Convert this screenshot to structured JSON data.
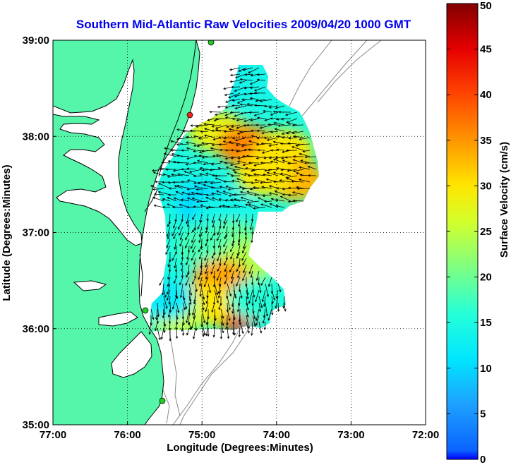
{
  "title": "Southern Mid-Atlantic Raw Velocities 2009/04/20 1000 GMT",
  "x_axis": {
    "label": "Longitude (Degrees:Minutes)",
    "ticks": [
      "77:00",
      "76:00",
      "75:00",
      "74:00",
      "73:00",
      "72:00"
    ]
  },
  "y_axis": {
    "label": "Latitude (Degrees:Minutes)",
    "ticks": [
      "39:00",
      "38:00",
      "37:00",
      "36:00",
      "35:00"
    ]
  },
  "colorbar": {
    "label": "Surface Velocity (cm/s)",
    "ticks": [
      "50",
      "45",
      "40",
      "35",
      "30",
      "25",
      "20",
      "15",
      "10",
      "5",
      "0"
    ],
    "min": 0,
    "max": 50,
    "colormap": "jet"
  },
  "colors": {
    "land": "#55f5aa",
    "coastline": "#000000",
    "bathymetry": "#8a8a8a",
    "grid": "#000000",
    "site_marker_green": "#22cc22",
    "site_marker_red": "#ee2222"
  },
  "map": {
    "lon_range": [
      -77,
      -72
    ],
    "lat_range": [
      35,
      39
    ],
    "grid": "dotted"
  },
  "chart_data": {
    "type": "heatmap",
    "title": "Southern Mid-Atlantic Raw Velocities 2009/04/20 1000 GMT",
    "xlabel": "Longitude (Degrees:Minutes)",
    "ylabel": "Latitude (Degrees:Minutes)",
    "colorbar_label": "Surface Velocity (cm/s)",
    "xlim": [
      -77,
      -72
    ],
    "ylim": [
      35,
      39
    ],
    "clim": [
      0,
      50
    ],
    "regions": [
      {
        "lon": -74.75,
        "lat": 38.65,
        "speed": 8
      },
      {
        "lon": -74.45,
        "lat": 38.55,
        "speed": 12
      },
      {
        "lon": -74.2,
        "lat": 38.55,
        "speed": 14
      },
      {
        "lon": -74.8,
        "lat": 38.05,
        "speed": 28
      },
      {
        "lon": -74.4,
        "lat": 37.9,
        "speed": 36
      },
      {
        "lon": -73.9,
        "lat": 37.85,
        "speed": 30
      },
      {
        "lon": -73.75,
        "lat": 37.55,
        "speed": 33
      },
      {
        "lon": -74.15,
        "lat": 37.6,
        "speed": 30
      },
      {
        "lon": -75.2,
        "lat": 37.4,
        "speed": 14
      },
      {
        "lon": -74.95,
        "lat": 37.3,
        "speed": 10
      },
      {
        "lon": -74.7,
        "lat": 37.2,
        "speed": 14
      },
      {
        "lon": -74.6,
        "lat": 36.9,
        "speed": 20
      },
      {
        "lon": -74.95,
        "lat": 36.85,
        "speed": 18
      },
      {
        "lon": -74.4,
        "lat": 36.7,
        "speed": 24
      },
      {
        "lon": -74.75,
        "lat": 36.5,
        "speed": 34
      },
      {
        "lon": -74.55,
        "lat": 36.2,
        "speed": 44
      },
      {
        "lon": -74.95,
        "lat": 36.25,
        "speed": 30
      },
      {
        "lon": -75.35,
        "lat": 36.15,
        "speed": 26
      },
      {
        "lon": -75.5,
        "lat": 36.3,
        "speed": 12
      },
      {
        "lon": -74.25,
        "lat": 36.3,
        "speed": 16
      }
    ]
  }
}
